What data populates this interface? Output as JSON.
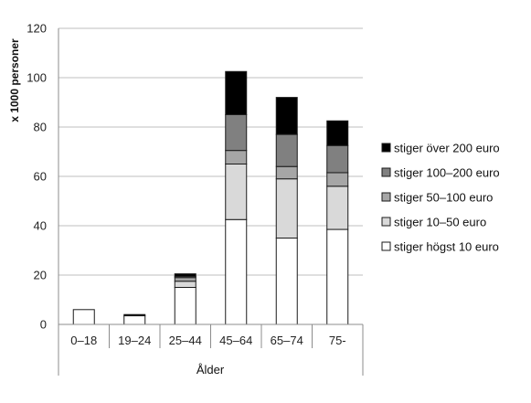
{
  "chart_data": {
    "type": "bar",
    "stacked": true,
    "categories": [
      "0–18",
      "19–24",
      "25–44",
      "45–64",
      "65–74",
      "75-"
    ],
    "series": [
      {
        "name": "stiger högst 10 euro",
        "color": "#ffffff",
        "values": [
          6,
          3.5,
          15,
          42.5,
          35,
          38.5
        ]
      },
      {
        "name": "stiger 10–50 euro",
        "color": "#d9d9d9",
        "values": [
          0,
          0,
          2.5,
          22.5,
          24,
          17.5
        ]
      },
      {
        "name": "stiger 50–100 euro",
        "color": "#a6a6a6",
        "values": [
          0,
          0,
          1.5,
          5.5,
          5,
          5.5
        ]
      },
      {
        "name": "stiger 100–200 euro",
        "color": "#808080",
        "values": [
          0,
          0,
          0.5,
          14.5,
          13,
          11
        ]
      },
      {
        "name": "stiger över 200 euro",
        "color": "#000000",
        "values": [
          0,
          0.5,
          1,
          17.5,
          15,
          10
        ]
      }
    ],
    "title": "",
    "xlabel": "Ålder",
    "ylabel": "x 1000 personer",
    "ylim": [
      0,
      120
    ],
    "yticks": [
      0,
      20,
      40,
      60,
      80,
      100,
      120
    ],
    "grid": true,
    "legend": "right"
  }
}
